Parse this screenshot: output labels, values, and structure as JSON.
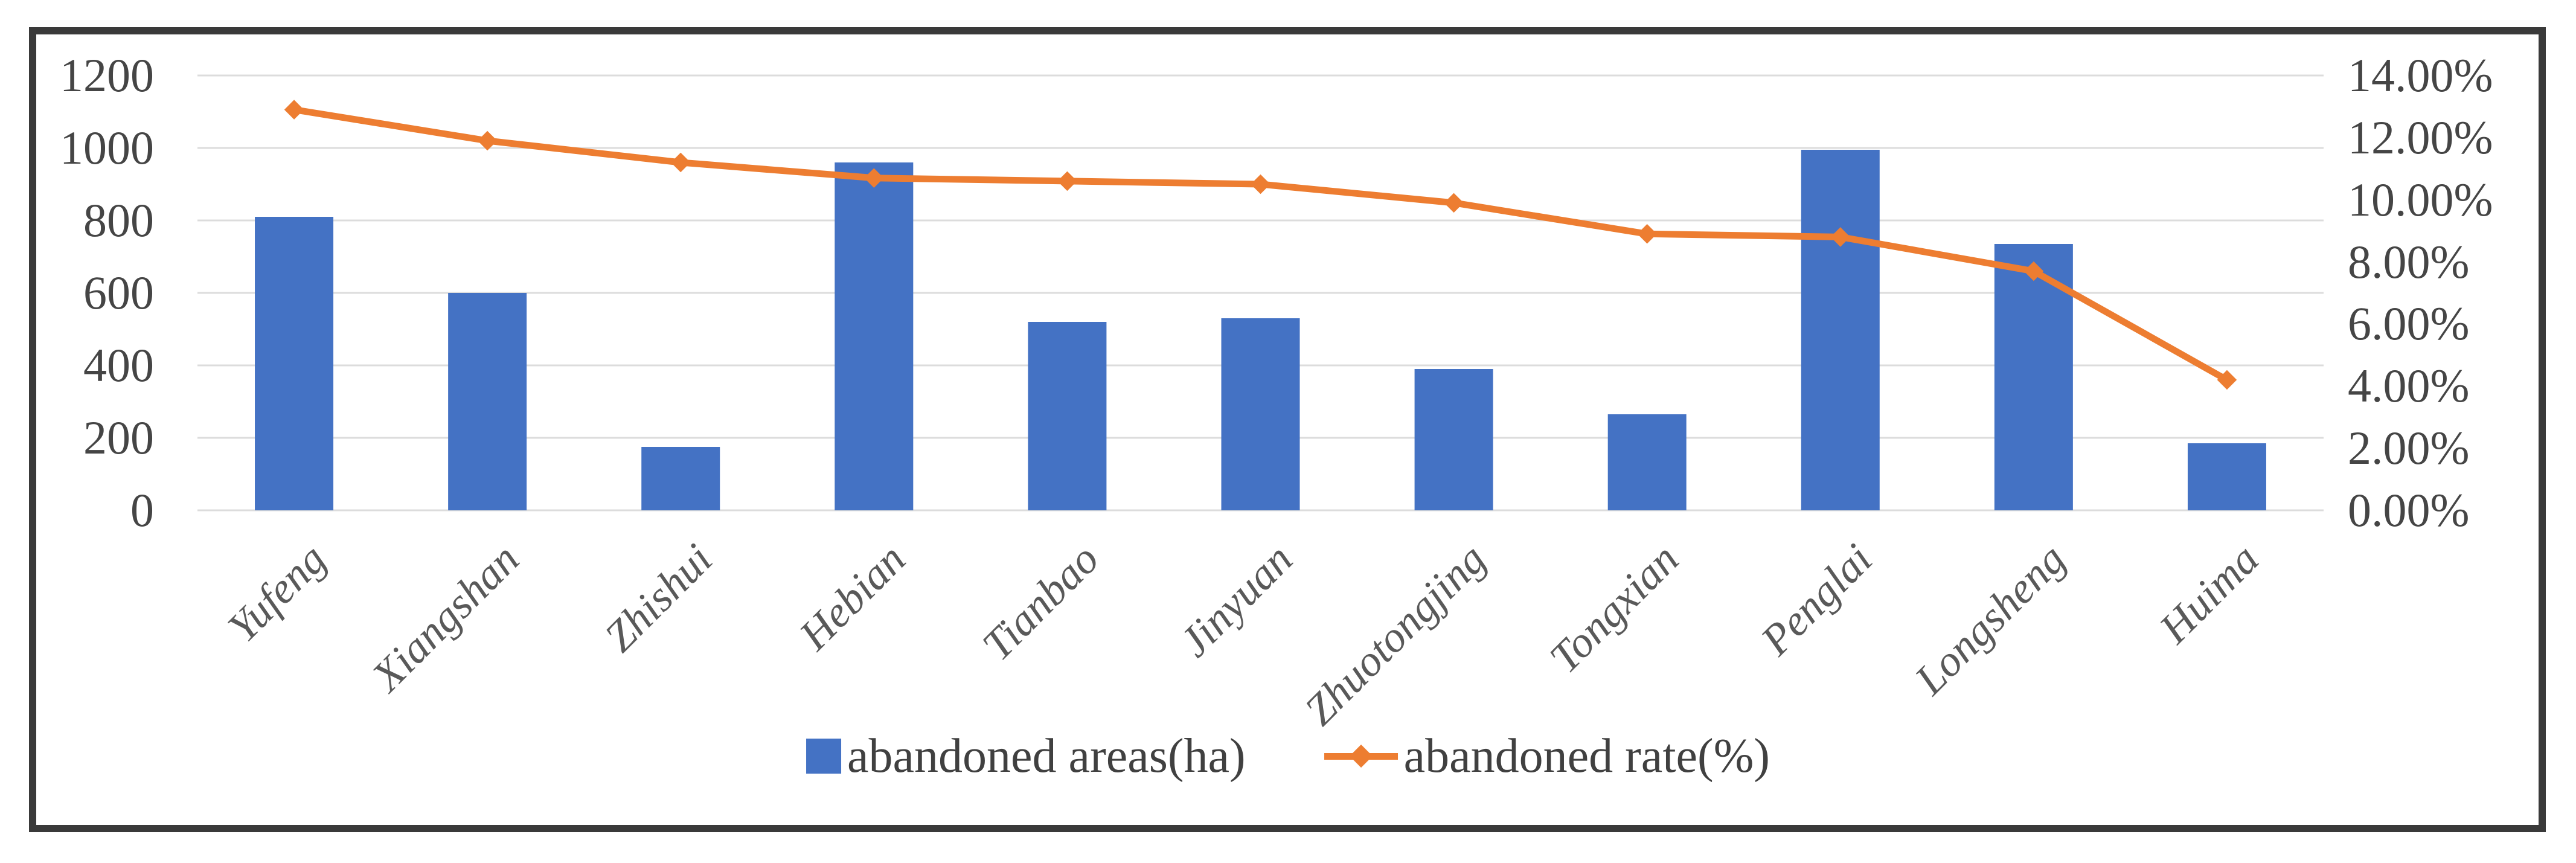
{
  "chart_data": {
    "type": "bar",
    "subtype": "bar-line-combo",
    "title": "",
    "categories": [
      "Yufeng",
      "Xiangshan",
      "Zhishui",
      "Hebian",
      "Tianbao",
      "Jinyuan",
      "Zhuotongjing",
      "Tongxian",
      "Penglai",
      "Longsheng",
      "Huima"
    ],
    "series": [
      {
        "name": "abandoned areas(ha)",
        "type": "bar",
        "axis": "left",
        "values": [
          810,
          600,
          175,
          960,
          520,
          530,
          390,
          265,
          995,
          735,
          185
        ]
      },
      {
        "name": "abandoned rate(%)",
        "type": "line",
        "axis": "right",
        "values": [
          12.9,
          11.9,
          11.2,
          10.7,
          10.6,
          10.5,
          9.9,
          8.9,
          8.8,
          7.7,
          4.2
        ]
      }
    ],
    "left_axis": {
      "min": 0,
      "max": 1200,
      "step": 200,
      "ticks": [
        "0",
        "200",
        "400",
        "600",
        "800",
        "1000",
        "1200"
      ]
    },
    "right_axis": {
      "min": 0,
      "max": 14,
      "step": 2,
      "ticks": [
        "0.00%",
        "2.00%",
        "4.00%",
        "6.00%",
        "8.00%",
        "10.00%",
        "12.00%",
        "14.00%"
      ]
    },
    "grid": true,
    "legend_position": "bottom"
  },
  "colors": {
    "bar": "#4472C4",
    "line": "#ED7D31",
    "gridline": "#DCDCDC",
    "tick_text": "#454545",
    "xlabel_text": "#595959",
    "legend_text": "#404040",
    "frame_border": "#3A3A3A"
  }
}
